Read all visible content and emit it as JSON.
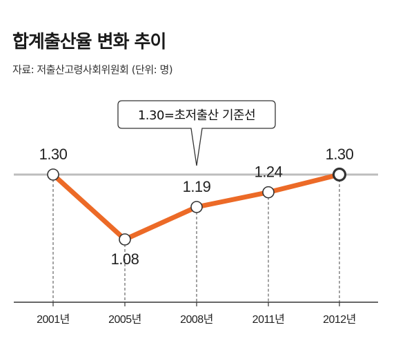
{
  "header": {
    "title": "합계출산율 변화 추이",
    "source": "자료: 저출산고령사회위원회 (단위: 명)"
  },
  "callout": {
    "text": "1.30=초저출산 기준선"
  },
  "chart_data": {
    "type": "line",
    "title": "합계출산율 변화 추이",
    "categories": [
      "2001년",
      "2005년",
      "2008년",
      "2011년",
      "2012년"
    ],
    "values": [
      1.3,
      1.08,
      1.19,
      1.24,
      1.3
    ],
    "labels": [
      "1.30",
      "1.08",
      "1.19",
      "1.24",
      "1.30"
    ],
    "reference_line": {
      "value": 1.3,
      "label": "1.30=초저출산 기준선"
    },
    "ylim": [
      0.94,
      1.34
    ],
    "grid": false,
    "colors": {
      "line": "#ec6a27",
      "reference": "#bdbdbd",
      "marker_fill": "#ffffff",
      "marker_stroke": "#333333"
    }
  }
}
